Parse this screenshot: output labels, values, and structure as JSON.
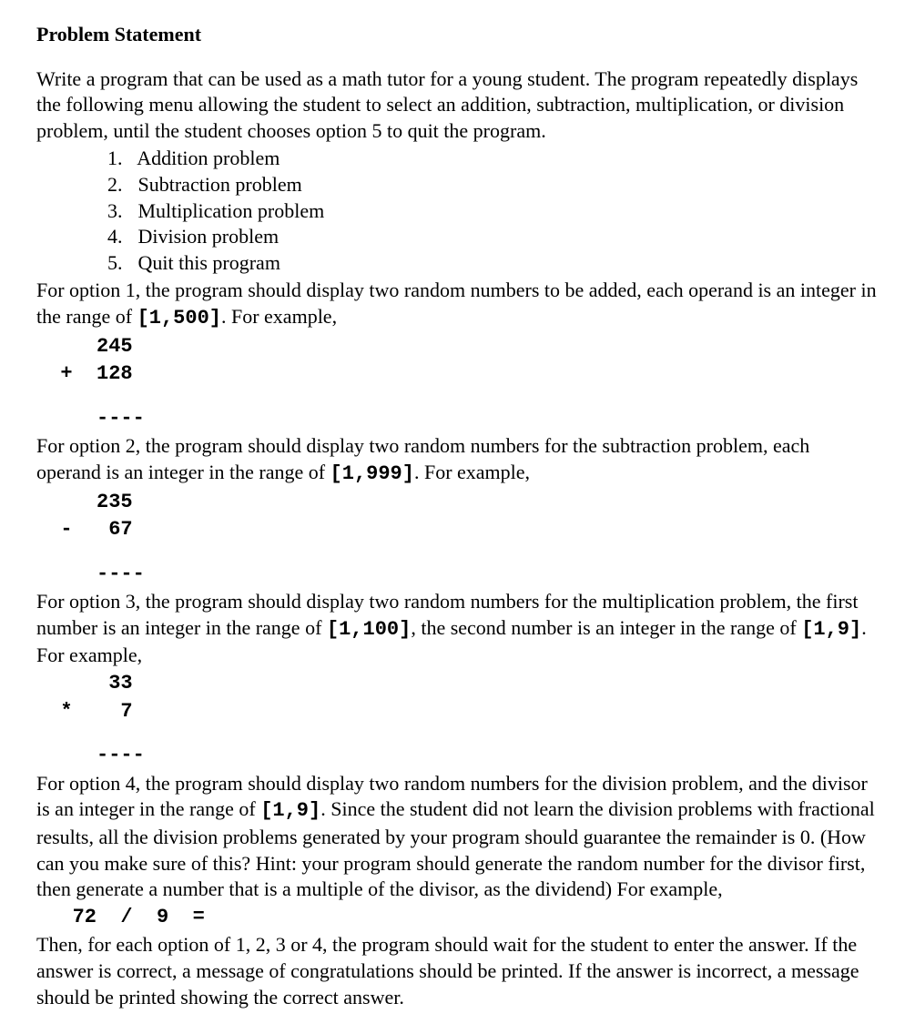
{
  "heading": "Problem Statement",
  "intro": "Write a program that can be used as a math tutor for a young student. The program repeatedly displays the following menu allowing the student to select an addition, subtraction, multiplication, or division problem, until the student chooses option 5 to quit the program.",
  "menu": [
    {
      "num": "1.",
      "label": "Addition problem"
    },
    {
      "num": "2.",
      "label": "Subtraction problem"
    },
    {
      "num": "3.",
      "label": "Multiplication problem"
    },
    {
      "num": "4.",
      "label": "Division problem"
    },
    {
      "num": "5.",
      "label": "Quit this program"
    }
  ],
  "option1": {
    "text_before": "For option 1, the program should display two random numbers to be added, each operand is an integer in the range of ",
    "range": "[1,500]",
    "text_after": ". For example,",
    "example_line1": "     245",
    "example_line2": "  +  128",
    "example_line3": "     ----"
  },
  "option2": {
    "text_before": "For option 2, the program should display two random numbers for the subtraction problem, each operand is an integer in the range of ",
    "range": "[1,999]",
    "text_after": ". For example,",
    "example_line1": "     235",
    "example_line2": "  -   67",
    "example_line3": "     ----"
  },
  "option3": {
    "text_before1": "For option 3, the program should display two random numbers for the multiplication problem, the first number is an integer in the range of ",
    "range1": "[1,100]",
    "text_mid": ", the second number is an integer in the range of ",
    "range2": "[1,9]",
    "text_after": ". For example,",
    "example_line1": "      33",
    "example_line2": "  *    7",
    "example_line3": "     ----"
  },
  "option4": {
    "text_before": "For option 4, the program should display two random numbers for the division problem, and the divisor is an integer in the range of ",
    "range": "[1,9]",
    "text_after": ". Since the student did not learn the division problems with fractional results, all the division problems generated by your program should guarantee the remainder is 0. (How can you make sure of this? Hint: your program should generate the random number for the divisor first, then generate a number that is a multiple of the divisor, as the dividend) For example,",
    "example_line1": "   72  /  9  ="
  },
  "closing": "Then, for each option of 1, 2, 3 or 4, the program should wait for the student to enter the answer. If the answer is correct, a message of congratulations should be printed. If the answer is incorrect, a message should be printed showing the correct answer."
}
